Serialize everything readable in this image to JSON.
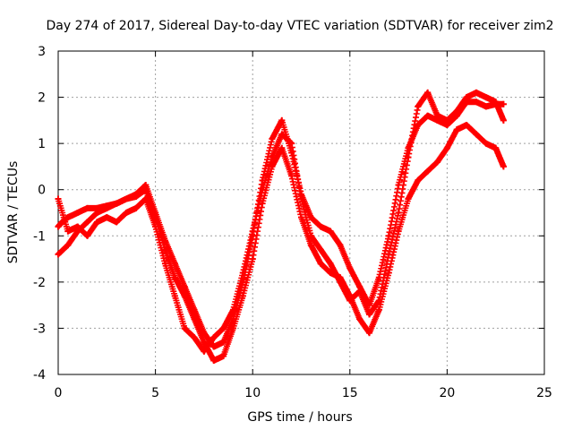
{
  "chart_data": {
    "type": "scatter",
    "title": "Day 274 of 2017, Sidereal Day-to-day VTEC variation (SDTVAR) for receiver zim2",
    "xlabel": "GPS time / hours",
    "ylabel": "SDTVAR / TECUs",
    "xlim": [
      0,
      25
    ],
    "ylim": [
      -4,
      3
    ],
    "xticks": [
      "0",
      "5",
      "10",
      "15",
      "20",
      "25"
    ],
    "yticks": [
      "-4",
      "-3",
      "-2",
      "-1",
      "0",
      "1",
      "2",
      "3"
    ],
    "grid": true,
    "marker": "+",
    "series": [
      {
        "color": "#ff0000",
        "x": [
          0.0,
          0.2,
          0.5,
          1.0,
          1.5,
          2.0,
          2.5,
          3.0,
          3.5,
          4.0,
          4.5,
          5.0,
          5.5,
          6.0,
          6.5,
          7.0,
          7.5,
          8.0,
          8.5,
          9.0,
          9.5,
          10.0,
          10.5,
          11.0,
          11.5,
          12.0,
          12.5,
          13.0,
          13.5,
          14.0,
          14.5,
          15.0,
          15.5,
          16.0,
          16.5,
          17.0,
          17.5,
          18.0,
          18.5,
          19.0,
          19.5,
          20.0,
          20.5,
          21.0,
          21.5,
          22.0,
          22.5,
          22.9
        ],
        "y": [
          -0.8,
          -0.7,
          -0.6,
          -0.5,
          -0.4,
          -0.4,
          -0.35,
          -0.3,
          -0.2,
          -0.1,
          0.1,
          -0.5,
          -1.1,
          -1.6,
          -2.1,
          -2.6,
          -3.1,
          -3.4,
          -3.3,
          -2.8,
          -2.0,
          -1.0,
          0.2,
          1.1,
          1.5,
          0.8,
          -0.1,
          -0.6,
          -0.8,
          -0.9,
          -1.2,
          -1.7,
          -2.1,
          -2.5,
          -1.9,
          -1.0,
          0.1,
          0.9,
          1.4,
          1.6,
          1.5,
          1.4,
          1.6,
          1.9,
          1.9,
          1.8,
          1.85,
          1.85
        ]
      },
      {
        "color": "#ff0000",
        "x": [
          0.0,
          0.5,
          1.0,
          1.5,
          2.0,
          2.5,
          3.0,
          3.5,
          4.0,
          4.5,
          5.0,
          5.5,
          6.0,
          6.5,
          7.0,
          7.5,
          8.0,
          8.5,
          9.0,
          9.5,
          10.0,
          10.5,
          11.0,
          11.5,
          12.0,
          12.5,
          13.0,
          13.5,
          14.0,
          14.5,
          15.0,
          15.5,
          16.0,
          16.5,
          17.0,
          17.5,
          18.0,
          18.5,
          19.0,
          19.5,
          20.0,
          20.5,
          21.0,
          21.5,
          22.0,
          22.5,
          22.9
        ],
        "y": [
          -1.4,
          -1.2,
          -0.9,
          -0.7,
          -0.5,
          -0.4,
          -0.3,
          -0.2,
          -0.15,
          0.0,
          -0.6,
          -1.3,
          -1.9,
          -2.3,
          -2.8,
          -3.3,
          -3.7,
          -3.6,
          -3.0,
          -2.3,
          -1.5,
          -0.3,
          0.5,
          0.9,
          0.3,
          -0.6,
          -1.2,
          -1.6,
          -1.8,
          -1.9,
          -2.3,
          -2.8,
          -3.1,
          -2.6,
          -1.8,
          -0.9,
          -0.2,
          0.2,
          0.4,
          0.6,
          0.9,
          1.3,
          1.4,
          1.2,
          1.0,
          0.9,
          0.5
        ]
      },
      {
        "color": "#ff0000",
        "x": [
          0.0,
          0.5,
          1.0,
          1.5,
          2.0,
          2.5,
          3.0,
          3.5,
          4.0,
          4.5,
          5.0,
          5.5,
          6.0,
          6.5,
          7.0,
          7.5,
          8.0,
          8.5,
          9.0,
          9.5,
          10.0,
          10.5,
          11.0,
          11.5,
          12.0,
          12.5,
          13.0,
          13.5,
          14.0,
          14.5,
          15.0,
          15.5,
          16.0,
          16.5,
          17.0,
          17.5,
          18.0,
          18.5,
          19.0,
          19.5,
          20.0,
          20.5,
          21.0,
          21.5,
          22.0,
          22.5,
          22.9
        ],
        "y": [
          -0.2,
          -0.9,
          -0.8,
          -1.0,
          -0.7,
          -0.6,
          -0.7,
          -0.5,
          -0.4,
          -0.2,
          -0.8,
          -1.6,
          -2.3,
          -3.0,
          -3.2,
          -3.5,
          -3.2,
          -3.0,
          -2.6,
          -1.8,
          -0.9,
          0.0,
          0.7,
          1.2,
          1.0,
          -0.2,
          -1.0,
          -1.3,
          -1.6,
          -2.0,
          -2.4,
          -2.2,
          -2.7,
          -2.4,
          -1.4,
          -0.5,
          0.7,
          1.8,
          2.1,
          1.6,
          1.5,
          1.7,
          2.0,
          2.1,
          2.0,
          1.9,
          1.5
        ]
      }
    ]
  }
}
